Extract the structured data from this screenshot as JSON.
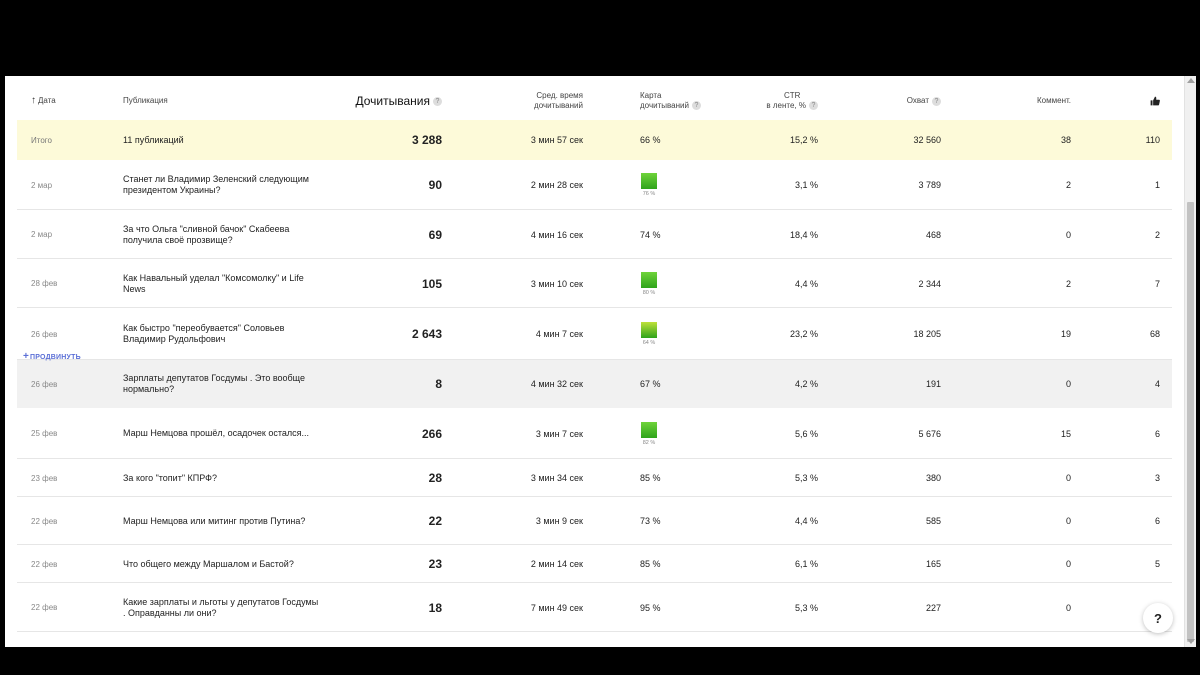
{
  "header": {
    "date": "Дата",
    "publication": "Публикация",
    "reads": "Дочитывания",
    "avg_time_line1": "Сред. время",
    "avg_time_line2": "дочитываний",
    "map_line1": "Карта",
    "map_line2": "дочитываний",
    "ctr_line1": "CTR",
    "ctr_line2": "в ленте, %",
    "reach": "Охват",
    "comments": "Коммент.",
    "likes_icon": "thumbs-up-icon",
    "question_glyph": "?"
  },
  "total": {
    "date": "Итого",
    "publication": "11 публикаций",
    "reads": "3 288",
    "time": "3 мин 57 сек",
    "map": "66 %",
    "ctr": "15,2 %",
    "reach": "32 560",
    "comments": "38",
    "likes": "110"
  },
  "promote_label": "ПРОДВИНУТЬ",
  "rows": [
    {
      "date": "2 мар",
      "title": "Станет ли Владимир Зеленский следующим президентом Украины?",
      "reads": "90",
      "time": "2 мин 28 сек",
      "map": "76 %",
      "map_graph": true,
      "ctr": "3,1 %",
      "reach": "3 789",
      "comments": "2",
      "likes": "1"
    },
    {
      "date": "2 мар",
      "title": "За что Ольга \"сливной бачок\" Скабеева получила своё прозвище?",
      "reads": "69",
      "time": "4 мин 16 сек",
      "map": "74 %",
      "map_graph": false,
      "ctr": "18,4 %",
      "reach": "468",
      "comments": "0",
      "likes": "2"
    },
    {
      "date": "28 фев",
      "title": "Как Навальный уделал \"Комсомолку\" и Life News",
      "reads": "105",
      "time": "3 мин 10 сек",
      "map": "80 %",
      "map_graph": true,
      "ctr": "4,4 %",
      "reach": "2 344",
      "comments": "2",
      "likes": "7"
    },
    {
      "date": "26 фев",
      "title": "Как быстро \"переобувается\" Соловьев Владимир Рудольфович",
      "reads": "2 643",
      "time": "4 мин 7 сек",
      "map": "64 %",
      "map_graph": true,
      "ctr": "23,2 %",
      "reach": "18 205",
      "comments": "19",
      "likes": "68"
    },
    {
      "date": "26 фев",
      "title": "Зарплаты депутатов Госдумы . Это вообще нормально?",
      "reads": "8",
      "time": "4 мин 32 сек",
      "map": "67 %",
      "map_graph": false,
      "ctr": "4,2 %",
      "reach": "191",
      "comments": "0",
      "likes": "4"
    },
    {
      "date": "25 фев",
      "title": "Марш Немцова прошёл, осадочек остался...",
      "reads": "266",
      "time": "3 мин 7 сек",
      "map": "82 %",
      "map_graph": true,
      "ctr": "5,6 %",
      "reach": "5 676",
      "comments": "15",
      "likes": "6"
    },
    {
      "date": "23 фев",
      "title": "За кого \"топит\" КПРФ?",
      "reads": "28",
      "time": "3 мин 34 сек",
      "map": "85 %",
      "map_graph": false,
      "ctr": "5,3 %",
      "reach": "380",
      "comments": "0",
      "likes": "3"
    },
    {
      "date": "22 фев",
      "title": "Марш Немцова или митинг против Путина?",
      "reads": "22",
      "time": "3 мин 9 сек",
      "map": "73 %",
      "map_graph": false,
      "ctr": "4,4 %",
      "reach": "585",
      "comments": "0",
      "likes": "6"
    },
    {
      "date": "22 фев",
      "title": "Что общего между Маршалом и Бастой?",
      "reads": "23",
      "time": "2 мин 14 сек",
      "map": "85 %",
      "map_graph": false,
      "ctr": "6,1 %",
      "reach": "165",
      "comments": "0",
      "likes": "5"
    },
    {
      "date": "22 фев",
      "title": "Какие зарплаты и льготы у депутатов Госдумы . Оправданны ли они?",
      "reads": "18",
      "time": "7 мин 49 сек",
      "map": "95 %",
      "map_graph": false,
      "ctr": "5,3 %",
      "reach": "227",
      "comments": "0",
      "likes": ""
    }
  ],
  "help_button": "?",
  "colors": {
    "total_bg": "#fdfad9",
    "promote": "#5b6fd6",
    "map_green": "#2fa31b"
  }
}
